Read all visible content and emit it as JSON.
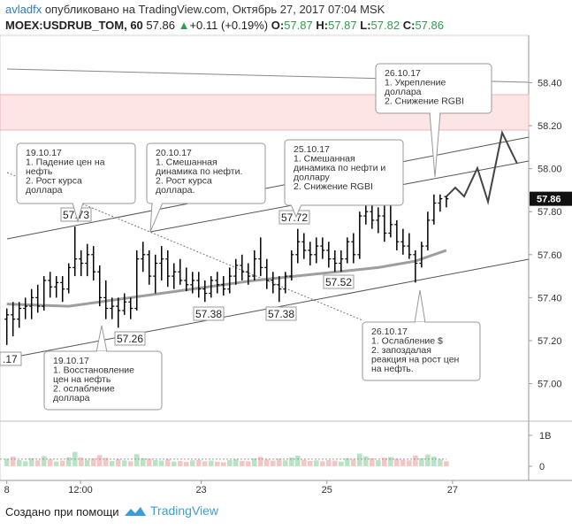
{
  "header": {
    "author": "avladfx",
    "published": "опубликовано на TradingView.com, Октябрь 27, 2017 07:04 MSK",
    "symbol": "MOEX:USDRUB_TOM, 60",
    "last": 57.86,
    "arrow": "▲",
    "change": "+0.11 (+0.19%)",
    "o_label": "O:",
    "o": 57.87,
    "h_label": "H:",
    "h": 57.87,
    "l_label": "L:",
    "l": 57.82,
    "c_label": "C:",
    "c": 57.86
  },
  "footer": {
    "text": "Создано при помощи",
    "brand": "TradingView"
  },
  "chart_data": {
    "type": "ohlc",
    "color": "#000000",
    "open": [
      57.3,
      57.32,
      57.3,
      57.35,
      57.36,
      57.4,
      57.36,
      57.48,
      57.45,
      57.47,
      57.44,
      57.54,
      57.58,
      57.56,
      57.6,
      57.52,
      57.4,
      57.35,
      57.36,
      57.34,
      57.38,
      57.35,
      57.58,
      57.6,
      57.5,
      57.56,
      57.58,
      57.5,
      57.52,
      57.48,
      57.46,
      57.48,
      57.44,
      57.42,
      57.48,
      57.46,
      57.44,
      57.5,
      57.55,
      57.52,
      57.5,
      57.58,
      57.54,
      57.48,
      57.46,
      57.44,
      57.5,
      57.6,
      57.66,
      57.62,
      57.6,
      57.64,
      57.62,
      57.58,
      57.56,
      57.58,
      57.66,
      57.6,
      57.78,
      57.8,
      57.76,
      57.78,
      57.7,
      57.74,
      57.66,
      57.64,
      57.6,
      57.56,
      57.64,
      57.76,
      57.84,
      57.87
    ],
    "high": [
      57.35,
      57.38,
      57.38,
      57.4,
      57.44,
      57.46,
      57.5,
      57.52,
      57.5,
      57.5,
      57.56,
      57.73,
      57.62,
      57.65,
      57.64,
      57.55,
      57.48,
      57.4,
      57.4,
      57.42,
      57.4,
      57.62,
      57.66,
      57.62,
      57.6,
      57.64,
      57.62,
      57.56,
      57.58,
      57.54,
      57.52,
      57.52,
      57.48,
      57.5,
      57.52,
      57.5,
      57.54,
      57.58,
      57.6,
      57.56,
      57.62,
      57.68,
      57.58,
      57.52,
      57.5,
      57.52,
      57.62,
      57.72,
      57.7,
      57.66,
      57.68,
      57.68,
      57.66,
      57.62,
      57.62,
      57.68,
      57.7,
      57.8,
      57.84,
      57.84,
      57.82,
      57.84,
      57.84,
      57.76,
      57.72,
      57.7,
      57.62,
      57.66,
      57.8,
      57.88,
      57.88,
      57.87
    ],
    "low": [
      57.18,
      57.22,
      57.26,
      57.3,
      57.3,
      57.33,
      57.34,
      57.4,
      57.4,
      57.38,
      57.42,
      57.5,
      57.5,
      57.5,
      57.48,
      57.36,
      57.3,
      57.3,
      57.26,
      57.32,
      57.3,
      57.34,
      57.52,
      57.46,
      57.42,
      57.48,
      57.45,
      57.44,
      57.46,
      57.43,
      57.42,
      57.4,
      57.38,
      57.4,
      57.42,
      57.41,
      57.42,
      57.46,
      57.48,
      57.46,
      57.48,
      57.5,
      57.44,
      57.42,
      57.38,
      57.42,
      57.48,
      57.56,
      57.58,
      57.55,
      57.56,
      57.58,
      57.54,
      57.52,
      57.52,
      57.56,
      57.56,
      57.58,
      57.74,
      57.72,
      57.7,
      57.66,
      57.68,
      57.62,
      57.6,
      57.58,
      57.47,
      57.54,
      57.62,
      57.74,
      57.8,
      57.82
    ],
    "close": [
      57.32,
      57.3,
      57.35,
      57.36,
      57.4,
      57.36,
      57.48,
      57.45,
      57.47,
      57.44,
      57.54,
      57.58,
      57.56,
      57.6,
      57.52,
      57.4,
      57.35,
      57.36,
      57.34,
      57.38,
      57.35,
      57.58,
      57.6,
      57.5,
      57.56,
      57.58,
      57.5,
      57.52,
      57.48,
      57.46,
      57.48,
      57.44,
      57.42,
      57.48,
      57.46,
      57.44,
      57.5,
      57.55,
      57.52,
      57.5,
      57.58,
      57.54,
      57.48,
      57.46,
      57.44,
      57.5,
      57.6,
      57.66,
      57.62,
      57.6,
      57.64,
      57.62,
      57.58,
      57.56,
      57.58,
      57.66,
      57.6,
      57.78,
      57.8,
      57.76,
      57.78,
      57.7,
      57.74,
      57.66,
      57.64,
      57.6,
      57.56,
      57.64,
      57.76,
      57.84,
      57.86,
      57.86
    ],
    "moving_average": {
      "color": "#9e9e9e",
      "x": [
        0,
        10,
        20,
        30,
        40,
        50,
        60,
        66,
        71
      ],
      "values": [
        57.37,
        57.36,
        57.4,
        57.44,
        57.48,
        57.51,
        57.54,
        57.57,
        57.62
      ]
    },
    "xlim": [
      -1.1,
      84.3
    ],
    "ylim": [
      56.85,
      58.62
    ],
    "xticks": [
      {
        "value": 0,
        "label": "8"
      },
      {
        "value": 11.9,
        "label": "12:00"
      },
      {
        "value": 31.4,
        "label": "23"
      },
      {
        "value": 51.7,
        "label": "25"
      },
      {
        "value": 72,
        "label": "27"
      }
    ],
    "yticks": [
      {
        "value": 58.4,
        "label": "58.40"
      },
      {
        "value": 58.2,
        "label": "58.20"
      },
      {
        "value": 58,
        "label": "58.00"
      },
      {
        "value": 57.8,
        "label": "57.80"
      },
      {
        "value": 57.6,
        "label": "57.60"
      },
      {
        "value": 57.4,
        "label": "57.40"
      },
      {
        "value": 57.2,
        "label": "57.20"
      },
      {
        "value": 57,
        "label": "57.00"
      }
    ],
    "grid": false,
    "price_labels": [
      57.73,
      57.26,
      57.38,
      57.38,
      57.72,
      57.52
    ],
    "edge_label": ".17",
    "annotations": [
      {
        "lines": [
          "19.10.17",
          "1. Падение цен на",
          "нефть",
          "2. Рост курса",
          "доллара"
        ]
      },
      {
        "lines": [
          "20.10.17",
          "1. Смешанная",
          "динамика по нефти.",
          "2. Рост курса",
          "доллара."
        ]
      },
      {
        "lines": [
          "25.10.17",
          "1. Смешанная",
          "динамика по нефти и",
          "доллару",
          "2. Снижение RGBI"
        ]
      },
      {
        "lines": [
          "26.10.17",
          "1. Укрепление",
          "доллара",
          "2. Снижение RGBI"
        ]
      },
      {
        "lines": [
          "19.10.17",
          "1. Восстановление",
          "цен на нефть",
          "2. ослабление",
          "доллара"
        ]
      },
      {
        "lines": [
          "26.10.17",
          "1. Ослабление $",
          "2. запоздалая",
          "реакция на рост цен",
          "на нефть."
        ]
      }
    ],
    "volume": {
      "up_color": "#b9e3c4",
      "down_color": "#f5c6c6",
      "values": [
        240000000.0,
        310000000.0,
        200000000.0,
        160000000.0,
        260000000.0,
        190000000.0,
        330000000.0,
        220000000.0,
        150000000.0,
        180000000.0,
        290000000.0,
        460000000.0,
        280000000.0,
        210000000.0,
        250000000.0,
        360000000.0,
        270000000.0,
        170000000.0,
        230000000.0,
        190000000.0,
        160000000.0,
        390000000.0,
        260000000.0,
        240000000.0,
        200000000.0,
        180000000.0,
        220000000.0,
        150000000.0,
        170000000.0,
        140000000.0,
        190000000.0,
        210000000.0,
        160000000.0,
        180000000.0,
        150000000.0,
        130000000.0,
        200000000.0,
        230000000.0,
        170000000.0,
        160000000.0,
        250000000.0,
        300000000.0,
        220000000.0,
        180000000.0,
        240000000.0,
        190000000.0,
        280000000.0,
        340000000.0,
        210000000.0,
        170000000.0,
        190000000.0,
        160000000.0,
        200000000.0,
        180000000.0,
        150000000.0,
        260000000.0,
        220000000.0,
        410000000.0,
        320000000.0,
        250000000.0,
        200000000.0,
        270000000.0,
        300000000.0,
        240000000.0,
        210000000.0,
        190000000.0,
        350000000.0,
        260000000.0,
        380000000.0,
        310000000.0,
        220000000.0,
        160000000.0
      ],
      "ma_level": 230000000.0,
      "ylim": [
        -460000000.0,
        1400000000.0
      ],
      "yticks": [
        {
          "value": 1000000000,
          "label": "1B"
        },
        0
      ]
    }
  }
}
